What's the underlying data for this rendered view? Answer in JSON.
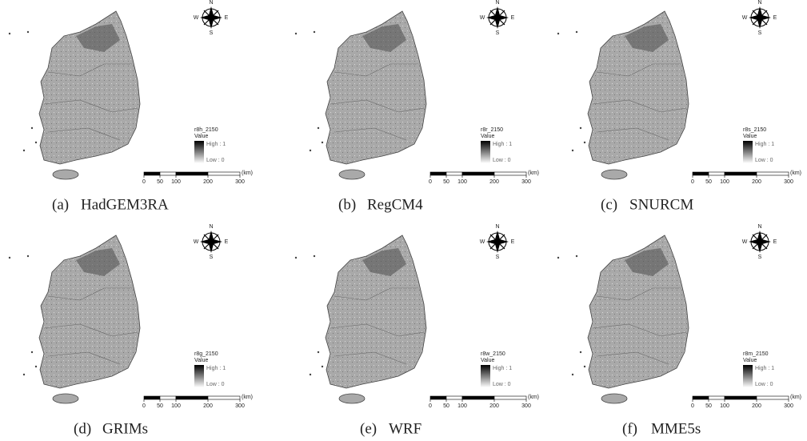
{
  "compass": {
    "n": "N",
    "s": "S",
    "w": "W",
    "e": "E"
  },
  "legend": {
    "value_label": "Value",
    "high": "High : 1",
    "low": "Low : 0"
  },
  "scale": {
    "ticks": [
      0,
      50,
      100,
      200,
      300
    ],
    "unit": "(km)"
  },
  "panels": [
    {
      "legend_title": "r8h_2150",
      "letter": "(a)",
      "model": "HadGEM3RA"
    },
    {
      "legend_title": "r8r_2150",
      "letter": "(b)",
      "model": "RegCM4"
    },
    {
      "legend_title": "r8s_2150",
      "letter": "(c)",
      "model": "SNURCM"
    },
    {
      "legend_title": "r8g_2150",
      "letter": "(d)",
      "model": "GRIMs"
    },
    {
      "legend_title": "r8w_2150",
      "letter": "(e)",
      "model": "WRF"
    },
    {
      "legend_title": "r8m_2150",
      "letter": "(f)",
      "model": "MME5s"
    }
  ]
}
